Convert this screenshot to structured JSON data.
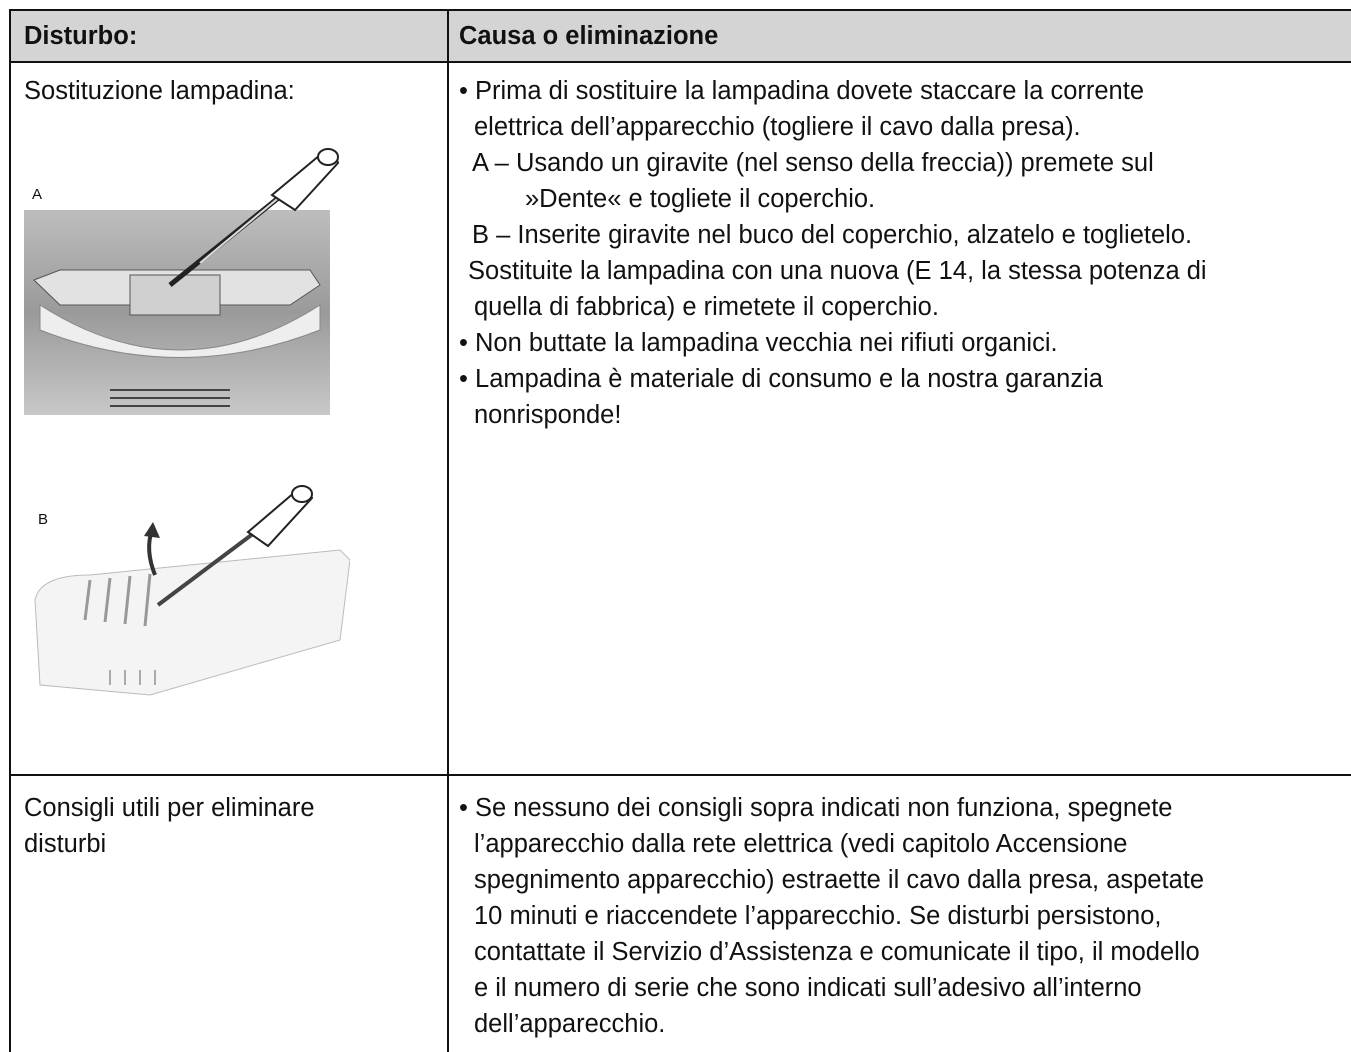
{
  "table": {
    "header": [
      "Disturbo:",
      "Causa o eliminazione"
    ],
    "rows": [
      {
        "problem": [
          "Sostituzione lampadina:"
        ],
        "figure_labels": [
          "A",
          "B"
        ],
        "lines": [
          "• Prima di sostituire la lampadina dovete staccare la corrente",
          "elettrica dell’apparecchio (togliere il cavo dalla presa).",
          "A – Usando un giravite (nel senso della freccia)) premete sul",
          "»Dente« e togliete il coperchio.",
          "B – Inserite giravite nel buco del coperchio, alzatelo e toglietelo.",
          "Sostituite la lampadina con una nuova (E 14, la stessa potenza di",
          "quella di fabbrica) e rimetete il coperchio.",
          "• Non buttate la lampadina vecchia nei rifiuti organici.",
          "• Lampadina è materiale di consumo e la nostra garanzia",
          "nonrisponde!"
        ]
      },
      {
        "problem": [
          "Consigli utili per eliminare",
          "disturbi"
        ],
        "lines": [
          "• Se nessuno dei consigli sopra indicati non funziona, spegnete",
          "l’apparecchio dalla rete elettrica (vedi capitolo Accensione",
          "spegnimento apparecchio) estraette il cavo dalla presa, aspetate",
          "10 minuti e riaccendete l’apparecchio. Se disturbi persistono,",
          "contattate il Servizio d’Assistenza e comunicate il tipo, il modello",
          "e il numero di serie che sono indicati sull’adesivo all’interno",
          "dell’apparecchio."
        ]
      }
    ]
  }
}
